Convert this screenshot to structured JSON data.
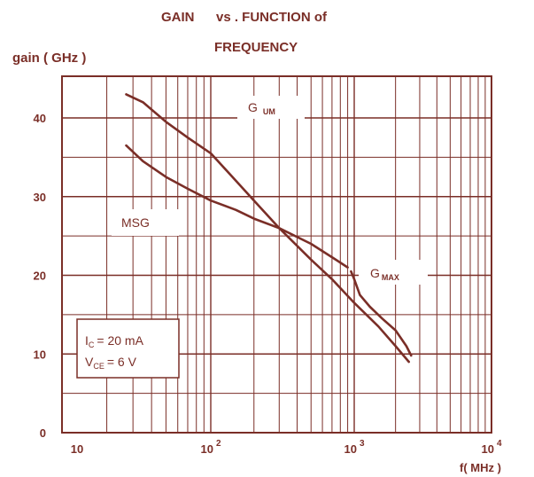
{
  "chart_data": {
    "type": "line",
    "title_line1": {
      "a": "GAIN",
      "b": "vs . FUNCTION of"
    },
    "title_line2": "FREQUENCY",
    "ylabel": "gain (  GHz )",
    "xlabel": "f(  MHz )",
    "x_scale": "log",
    "xlim": [
      10,
      10000
    ],
    "ylim": [
      0,
      45
    ],
    "y_ticks": [
      {
        "value": 0,
        "label": "0"
      },
      {
        "value": 10,
        "label": "10"
      },
      {
        "value": 20,
        "label": "20"
      },
      {
        "value": 30,
        "label": "30"
      },
      {
        "value": 40,
        "label": "40"
      }
    ],
    "x_ticks": [
      {
        "value": 10,
        "base": "10",
        "exp": ""
      },
      {
        "value": 100,
        "base": "10",
        "exp": "2"
      },
      {
        "value": 1000,
        "base": "10",
        "exp": "3"
      },
      {
        "value": 10000,
        "base": "10",
        "exp": "4"
      }
    ],
    "grid": true,
    "series": [
      {
        "name": "G UM",
        "label_main": "G",
        "label_sub": "UM",
        "x": [
          27,
          35,
          50,
          70,
          100,
          150,
          200,
          300,
          500,
          700,
          1000,
          1500,
          2000,
          2500
        ],
        "y": [
          43,
          42,
          39.5,
          37.5,
          35.5,
          32,
          29.5,
          26,
          22,
          19.5,
          16.5,
          13.5,
          11,
          9
        ]
      },
      {
        "name": "MSG",
        "label_main": "MSG",
        "label_sub": "",
        "x": [
          27,
          35,
          50,
          70,
          100,
          150,
          200,
          300,
          500,
          700,
          900
        ],
        "y": [
          36.5,
          34.5,
          32.5,
          31,
          29.5,
          28.3,
          27.2,
          26,
          24,
          22.3,
          21
        ]
      },
      {
        "name": "G MAX",
        "label_main": "G",
        "label_sub": "MAX",
        "x": [
          950,
          1000,
          1100,
          1300,
          1600,
          2000,
          2400,
          2600
        ],
        "y": [
          20.5,
          19.5,
          17.5,
          16,
          14.5,
          13,
          11,
          9.8
        ]
      }
    ],
    "annotation": {
      "line1_main": "I",
      "line1_sub": "C",
      "line1_rest": "= 20   mA",
      "line2_main": "V",
      "line2_sub": "CE",
      "line2_rest": "=  6  V"
    },
    "colors": {
      "ink": "#7a2e27",
      "grid": "#7a2e27",
      "background": "#ffffff"
    }
  }
}
